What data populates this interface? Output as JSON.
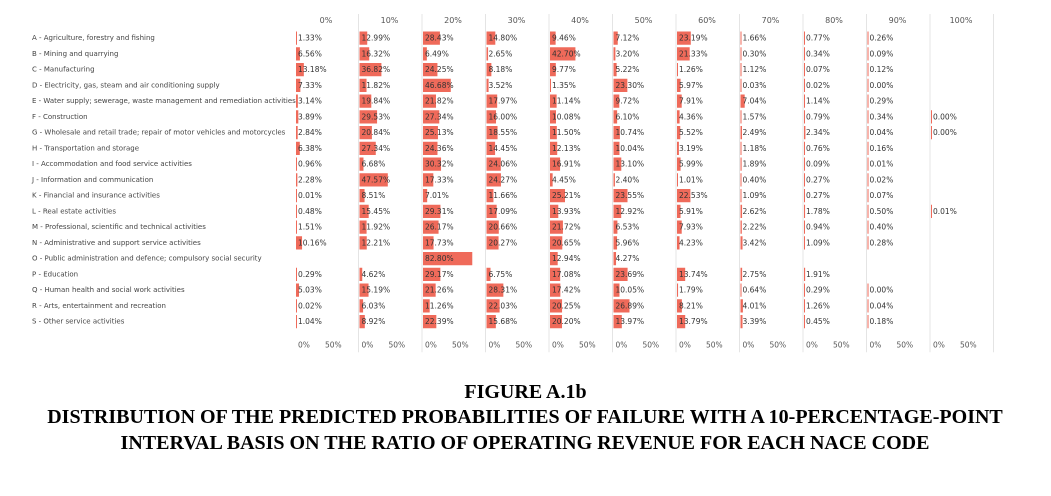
{
  "chart_data": {
    "type": "heatmap",
    "title": "",
    "top_ticks": [
      "0%",
      "10%",
      "20%",
      "30%",
      "40%",
      "50%",
      "60%",
      "70%",
      "80%",
      "90%",
      "100%"
    ],
    "sub_axis_ticks": [
      "0%",
      "50%"
    ],
    "bar_scale_max": 100,
    "cell_color": "#ef6a5a",
    "rows": [
      "A - Agriculture, forestry and fishing",
      "B - Mining and quarrying",
      "C - Manufacturing",
      "D - Electricity, gas, steam and air conditioning supply",
      "E - Water supply; sewerage, waste management and remediation activities",
      "F - Construction",
      "G - Wholesale and retail trade; repair of motor vehicles and motorcycles",
      "H - Transportation and storage",
      "I - Accommodation and food service activities",
      "J - Information and communication",
      "K - Financial and insurance activities",
      "L - Real estate activities",
      "M - Professional, scientific and technical activities",
      "N - Administrative and support service activities",
      "O - Public administration and defence; compulsory social security",
      "P - Education",
      "Q - Human health and social work activities",
      "R - Arts, entertainment and recreation",
      "S - Other service activities"
    ],
    "values": [
      [
        "1.33%",
        "12.99%",
        "28.43%",
        "14.80%",
        "9.46%",
        "7.12%",
        "23.19%",
        "1.66%",
        "0.77%",
        "0.26%",
        ""
      ],
      [
        "6.56%",
        "16.32%",
        "6.49%",
        "2.65%",
        "42.70%",
        "3.20%",
        "21.33%",
        "0.30%",
        "0.34%",
        "0.09%",
        ""
      ],
      [
        "13.18%",
        "36.82%",
        "24.25%",
        "8.18%",
        "9.77%",
        "5.22%",
        "1.26%",
        "1.12%",
        "0.07%",
        "0.12%",
        ""
      ],
      [
        "7.33%",
        "11.82%",
        "46.68%",
        "3.52%",
        "1.35%",
        "23.30%",
        "5.97%",
        "0.03%",
        "0.02%",
        "0.00%",
        ""
      ],
      [
        "3.14%",
        "19.84%",
        "21.82%",
        "17.97%",
        "11.14%",
        "9.72%",
        "7.91%",
        "7.04%",
        "1.14%",
        "0.29%",
        ""
      ],
      [
        "3.89%",
        "29.53%",
        "27.34%",
        "16.00%",
        "10.08%",
        "6.10%",
        "4.36%",
        "1.57%",
        "0.79%",
        "0.34%",
        "0.00%"
      ],
      [
        "2.84%",
        "20.84%",
        "25.13%",
        "18.55%",
        "11.50%",
        "10.74%",
        "5.52%",
        "2.49%",
        "2.34%",
        "0.04%",
        "0.00%"
      ],
      [
        "6.38%",
        "27.34%",
        "24.36%",
        "14.45%",
        "12.13%",
        "10.04%",
        "3.19%",
        "1.18%",
        "0.76%",
        "0.16%",
        ""
      ],
      [
        "0.96%",
        "6.68%",
        "30.32%",
        "24.06%",
        "16.91%",
        "13.10%",
        "5.99%",
        "1.89%",
        "0.09%",
        "0.01%",
        ""
      ],
      [
        "2.28%",
        "47.57%",
        "17.33%",
        "24.27%",
        "4.45%",
        "2.40%",
        "1.01%",
        "0.40%",
        "0.27%",
        "0.02%",
        ""
      ],
      [
        "0.01%",
        "8.51%",
        "7.01%",
        "11.66%",
        "25.21%",
        "23.55%",
        "22.53%",
        "1.09%",
        "0.27%",
        "0.07%",
        ""
      ],
      [
        "0.48%",
        "15.45%",
        "29.31%",
        "17.09%",
        "13.93%",
        "12.92%",
        "5.91%",
        "2.62%",
        "1.78%",
        "0.50%",
        "0.01%"
      ],
      [
        "1.51%",
        "11.92%",
        "26.17%",
        "20.66%",
        "21.72%",
        "6.53%",
        "7.93%",
        "2.22%",
        "0.94%",
        "0.40%",
        ""
      ],
      [
        "10.16%",
        "12.21%",
        "17.73%",
        "20.27%",
        "20.65%",
        "5.96%",
        "4.23%",
        "3.42%",
        "1.09%",
        "0.28%",
        ""
      ],
      [
        "",
        "",
        "82.80%",
        "",
        "12.94%",
        "4.27%",
        "",
        "",
        "",
        "",
        ""
      ],
      [
        "0.29%",
        "4.62%",
        "29.17%",
        "6.75%",
        "17.08%",
        "23.69%",
        "13.74%",
        "2.75%",
        "1.91%",
        "",
        ""
      ],
      [
        "5.03%",
        "15.19%",
        "21.26%",
        "28.31%",
        "17.42%",
        "10.05%",
        "1.79%",
        "0.64%",
        "0.29%",
        "0.00%",
        ""
      ],
      [
        "0.02%",
        "6.03%",
        "11.26%",
        "22.03%",
        "20.25%",
        "26.89%",
        "8.21%",
        "4.01%",
        "1.26%",
        "0.04%",
        ""
      ],
      [
        "1.04%",
        "8.92%",
        "22.39%",
        "15.68%",
        "20.20%",
        "13.97%",
        "13.79%",
        "3.39%",
        "0.45%",
        "0.18%",
        ""
      ]
    ]
  },
  "figure": {
    "label": "FIGURE A.1b",
    "title": "DISTRIBUTION OF THE PREDICTED PROBABILITIES OF FAILURE WITH A 10-PERCENTAGE-POINT INTERVAL BASIS ON THE RATIO OF OPERATING REVENUE FOR EACH NACE CODE"
  }
}
